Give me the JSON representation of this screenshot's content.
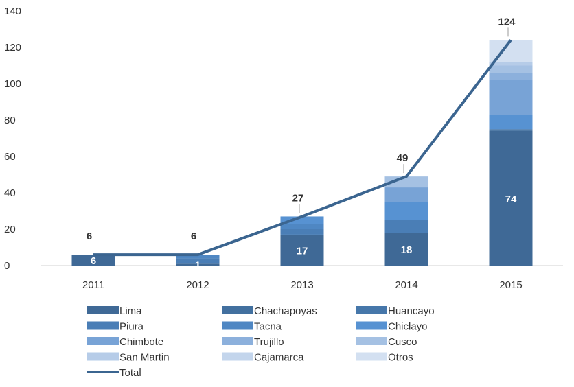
{
  "chart_data": {
    "type": "bar",
    "stacked": true,
    "title": "",
    "xlabel": "",
    "ylabel": "",
    "ylim": [
      0,
      140
    ],
    "yticks": [
      0,
      20,
      40,
      60,
      80,
      100,
      120,
      140
    ],
    "grid": false,
    "legend_position": "bottom",
    "categories": [
      "2011",
      "2012",
      "2013",
      "2014",
      "2015"
    ],
    "series": [
      {
        "name": "Lima",
        "color": "#3f6996",
        "values": [
          6,
          1,
          17,
          18,
          74
        ]
      },
      {
        "name": "Chachapoyas",
        "color": "#42709f",
        "values": [
          0,
          0,
          0,
          0,
          1
        ]
      },
      {
        "name": "Huancayo",
        "color": "#4677aa",
        "values": [
          0,
          0,
          0,
          0,
          0
        ]
      },
      {
        "name": "Piura",
        "color": "#4a7eb6",
        "values": [
          0,
          3,
          3,
          7,
          0
        ]
      },
      {
        "name": "Tacna",
        "color": "#4f87c3",
        "values": [
          0,
          2,
          3,
          0,
          0
        ]
      },
      {
        "name": "Chiclayo",
        "color": "#5792d2",
        "values": [
          0,
          0,
          4,
          10,
          8
        ]
      },
      {
        "name": "Chimbote",
        "color": "#78a3d6",
        "values": [
          0,
          0,
          0,
          8,
          19
        ]
      },
      {
        "name": "Trujillo",
        "color": "#8cb0dc",
        "values": [
          0,
          0,
          0,
          0,
          4
        ]
      },
      {
        "name": "Cusco",
        "color": "#a5c1e3",
        "values": [
          0,
          0,
          0,
          6,
          4
        ]
      },
      {
        "name": "San Martin",
        "color": "#b6cce8",
        "values": [
          0,
          0,
          0,
          0,
          2
        ]
      },
      {
        "name": "Cajamarca",
        "color": "#c3d5ec",
        "values": [
          0,
          0,
          0,
          0,
          0
        ]
      },
      {
        "name": "Otros",
        "color": "#d3e0f1",
        "values": [
          0,
          0,
          0,
          0,
          12
        ]
      }
    ],
    "segment_labels": [
      {
        "category": "2011",
        "series": "Lima",
        "text": "6"
      },
      {
        "category": "2012",
        "series": "Lima",
        "text": "1"
      },
      {
        "category": "2013",
        "series": "Lima",
        "text": "17"
      },
      {
        "category": "2014",
        "series": "Lima",
        "text": "18"
      },
      {
        "category": "2015",
        "series": "Lima",
        "text": "74"
      }
    ],
    "line_series": {
      "name": "Total",
      "color": "#3b6590",
      "values": [
        6,
        6,
        27,
        49,
        124
      ]
    },
    "line_labels": [
      "6",
      "6",
      "27",
      "49",
      "124"
    ]
  }
}
